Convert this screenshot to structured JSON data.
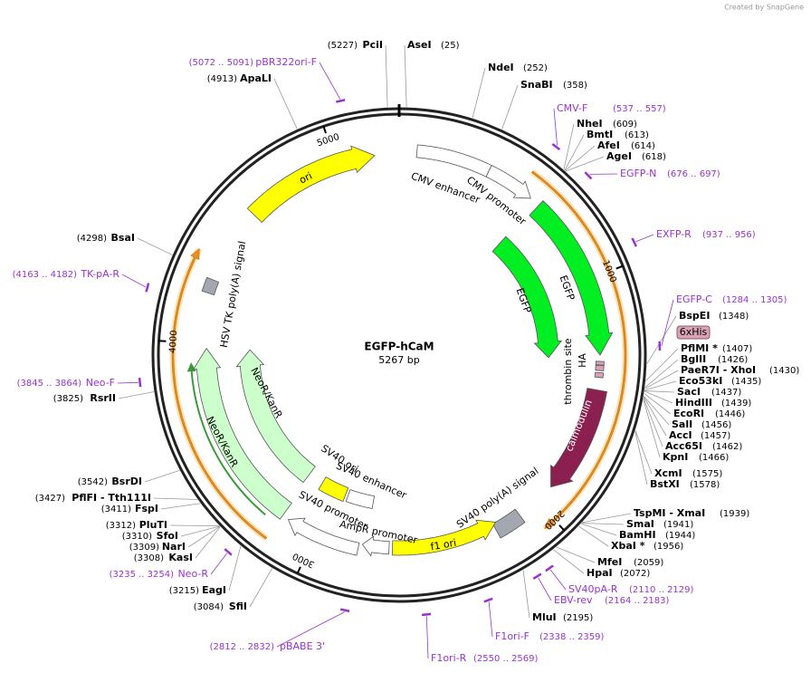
{
  "header": {
    "credit": "Created by SnapGene"
  },
  "map": {
    "name": "EGFP-hCaM",
    "length": "5267 bp",
    "ticks": [
      5000,
      1000,
      2000,
      3000,
      4000
    ],
    "features": [
      "ori",
      "CMV enhancer",
      "CMV promoter",
      "EGFP",
      "EGFP",
      "HA",
      "thrombin site",
      "calmodulin",
      "SV40 poly(A) signal",
      "f1 ori",
      "AmpR promoter",
      "SV40 promoter",
      "SV40 enhancer",
      "SV40 ori",
      "NeoR/KanR",
      "NeoR/KanR",
      "HSV TK poly(A) signal",
      "6xHis"
    ],
    "enzymes": [
      {
        "name": "PciI",
        "position": "(5227)"
      },
      {
        "name": "AseI",
        "position": "(25)"
      },
      {
        "name": "NdeI",
        "position": "(252)"
      },
      {
        "name": "SnaBI",
        "position": "(358)"
      },
      {
        "name": "NheI",
        "position": "(609)"
      },
      {
        "name": "BmtI",
        "position": "(613)"
      },
      {
        "name": "AfeI",
        "position": "(614)"
      },
      {
        "name": "AgeI",
        "position": "(618)"
      },
      {
        "name": "BspEI",
        "position": "(1348)"
      },
      {
        "name": "PflMI *",
        "position": "(1407)"
      },
      {
        "name": "BglII",
        "position": "(1426)"
      },
      {
        "name": "PaeR7I  - XhoI",
        "position": "(1430)"
      },
      {
        "name": "Eco53kI",
        "position": "(1435)"
      },
      {
        "name": "SacI",
        "position": "(1437)"
      },
      {
        "name": "HindIII",
        "position": "(1439)"
      },
      {
        "name": "EcoRI",
        "position": "(1446)"
      },
      {
        "name": "SalI",
        "position": "(1456)"
      },
      {
        "name": "AccI",
        "position": "(1457)"
      },
      {
        "name": "Acc65I",
        "position": "(1462)"
      },
      {
        "name": "KpnI",
        "position": "(1466)"
      },
      {
        "name": "XcmI",
        "position": "(1575)"
      },
      {
        "name": "BstXI",
        "position": "(1578)"
      },
      {
        "name": "TspMI  - XmaI",
        "position": "(1939)"
      },
      {
        "name": "SmaI",
        "position": "(1941)"
      },
      {
        "name": "BamHI",
        "position": "(1944)"
      },
      {
        "name": "XbaI *",
        "position": "(1956)"
      },
      {
        "name": "MfeI",
        "position": "(2059)"
      },
      {
        "name": "HpaI",
        "position": "(2072)"
      },
      {
        "name": "MluI",
        "position": "(2195)"
      },
      {
        "name": "SfiI",
        "position": "(3084)"
      },
      {
        "name": "EagI",
        "position": "(3215)"
      },
      {
        "name": "KasI",
        "position": "(3308)"
      },
      {
        "name": "NarI",
        "position": "(3309)"
      },
      {
        "name": "SfoI",
        "position": "(3310)"
      },
      {
        "name": "PluTI",
        "position": "(3312)"
      },
      {
        "name": "FspI",
        "position": "(3411)"
      },
      {
        "name": "PflFI  - Tth111I",
        "position": "(3427)"
      },
      {
        "name": "BsrDI",
        "position": "(3542)"
      },
      {
        "name": "RsrII",
        "position": "(3825)"
      },
      {
        "name": "BsaI",
        "position": "(4298)"
      },
      {
        "name": "ApaLI",
        "position": "(4913)"
      }
    ],
    "primers": [
      {
        "name": "pBR322ori-F",
        "position": "(5072 .. 5091)"
      },
      {
        "name": "CMV-F",
        "position": "(537 .. 557)"
      },
      {
        "name": "EGFP-N",
        "position": "(676 .. 697)"
      },
      {
        "name": "EXFP-R",
        "position": "(937 .. 956)"
      },
      {
        "name": "EGFP-C",
        "position": "(1284 .. 1305)"
      },
      {
        "name": "SV40pA-R",
        "position": "(2110 .. 2129)"
      },
      {
        "name": "EBV-rev",
        "position": "(2164 .. 2183)"
      },
      {
        "name": "F1ori-F",
        "position": "(2338 .. 2359)"
      },
      {
        "name": "F1ori-R",
        "position": "(2550 .. 2569)"
      },
      {
        "name": "pBABE 3'",
        "position": "(2812 .. 2832)"
      },
      {
        "name": "Neo-R",
        "position": "(3235 .. 3254)"
      },
      {
        "name": "Neo-F",
        "position": "(3845 .. 3864)"
      },
      {
        "name": "TK-pA-R",
        "position": "(4163 .. 4182)"
      }
    ]
  }
}
